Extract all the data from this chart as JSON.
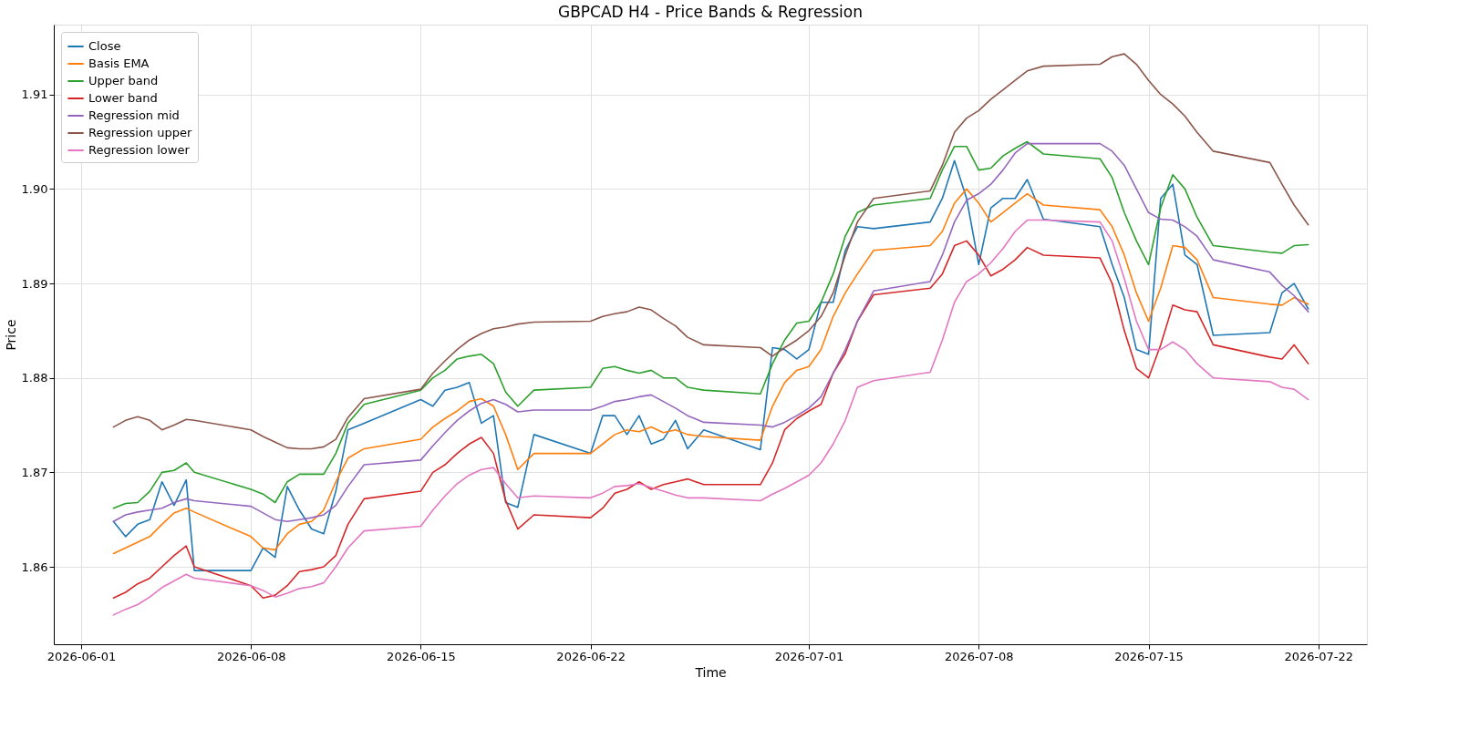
{
  "chart_data": {
    "type": "line",
    "title": "GBPCAD H4 - Price Bands & Regression",
    "xlabel": "Time",
    "ylabel": "Price",
    "x": [
      "2026-06-02T08:00",
      "2026-06-02T20:00",
      "2026-06-03T08:00",
      "2026-06-03T20:00",
      "2026-06-04T08:00",
      "2026-06-04T20:00",
      "2026-06-05T08:00",
      "2026-06-05T16:00",
      "2026-06-08T00:00",
      "2026-06-08T12:00",
      "2026-06-09T00:00",
      "2026-06-09T12:00",
      "2026-06-10T00:00",
      "2026-06-10T12:00",
      "2026-06-11T00:00",
      "2026-06-11T12:00",
      "2026-06-12T00:00",
      "2026-06-12T16:00",
      "2026-06-15T00:00",
      "2026-06-15T12:00",
      "2026-06-16T00:00",
      "2026-06-16T12:00",
      "2026-06-17T00:00",
      "2026-06-17T12:00",
      "2026-06-18T00:00",
      "2026-06-18T12:00",
      "2026-06-19T00:00",
      "2026-06-19T16:00",
      "2026-06-22T00:00",
      "2026-06-22T12:00",
      "2026-06-23T00:00",
      "2026-06-23T12:00",
      "2026-06-24T00:00",
      "2026-06-24T12:00",
      "2026-06-25T00:00",
      "2026-06-25T12:00",
      "2026-06-26T00:00",
      "2026-06-26T16:00",
      "2026-06-29T00:00",
      "2026-06-29T12:00",
      "2026-06-30T00:00",
      "2026-06-30T12:00",
      "2026-07-01T00:00",
      "2026-07-01T12:00",
      "2026-07-02T00:00",
      "2026-07-02T12:00",
      "2026-07-03T00:00",
      "2026-07-03T16:00",
      "2026-07-06T00:00",
      "2026-07-06T12:00",
      "2026-07-07T00:00",
      "2026-07-07T12:00",
      "2026-07-08T00:00",
      "2026-07-08T12:00",
      "2026-07-09T00:00",
      "2026-07-09T12:00",
      "2026-07-10T00:00",
      "2026-07-10T16:00",
      "2026-07-13T00:00",
      "2026-07-13T12:00",
      "2026-07-14T00:00",
      "2026-07-14T12:00",
      "2026-07-15T00:00",
      "2026-07-15T12:00",
      "2026-07-16T00:00",
      "2026-07-16T12:00",
      "2026-07-17T00:00",
      "2026-07-17T16:00",
      "2026-07-20T00:00",
      "2026-07-20T12:00",
      "2026-07-21T00:00",
      "2026-07-21T14:00"
    ],
    "series": [
      {
        "name": "Close",
        "color": "#1f77b4",
        "values": [
          1.8648,
          1.8632,
          1.8645,
          1.865,
          1.869,
          1.8665,
          1.8692,
          1.8596,
          1.8596,
          1.862,
          1.861,
          1.8685,
          1.866,
          1.864,
          1.8635,
          1.868,
          1.8745,
          1.8752,
          1.8777,
          1.877,
          1.8787,
          1.879,
          1.8795,
          1.8752,
          1.876,
          1.8668,
          1.8663,
          1.874,
          1.872,
          1.876,
          1.876,
          1.874,
          1.876,
          1.873,
          1.8735,
          1.8755,
          1.8725,
          1.8745,
          1.8724,
          1.8832,
          1.883,
          1.882,
          1.883,
          1.888,
          1.888,
          1.8935,
          1.896,
          1.8958,
          1.8965,
          1.899,
          1.903,
          1.899,
          1.892,
          1.898,
          1.899,
          1.899,
          1.901,
          1.8968,
          1.896,
          1.892,
          1.8885,
          1.883,
          1.8825,
          1.899,
          1.9005,
          1.893,
          1.892,
          1.8845,
          1.8848,
          1.889,
          1.89,
          1.8873
        ]
      },
      {
        "name": "Basis EMA",
        "color": "#ff7f0e",
        "values": [
          1.8614,
          1.862,
          1.8626,
          1.8632,
          1.8645,
          1.8657,
          1.8662,
          1.8658,
          1.8632,
          1.862,
          1.8618,
          1.8635,
          1.8645,
          1.8648,
          1.866,
          1.869,
          1.8715,
          1.8725,
          1.8735,
          1.8748,
          1.8757,
          1.8765,
          1.8775,
          1.8778,
          1.877,
          1.874,
          1.8703,
          1.872,
          1.872,
          1.873,
          1.874,
          1.8745,
          1.8743,
          1.8748,
          1.8742,
          1.8745,
          1.874,
          1.8738,
          1.8734,
          1.877,
          1.8795,
          1.8808,
          1.8812,
          1.883,
          1.8865,
          1.889,
          1.891,
          1.8935,
          1.894,
          1.8955,
          1.8985,
          1.9,
          1.8985,
          1.8965,
          1.8975,
          1.8985,
          1.8995,
          1.8983,
          1.8978,
          1.896,
          1.893,
          1.889,
          1.886,
          1.8895,
          1.894,
          1.8938,
          1.8925,
          1.8885,
          1.8878,
          1.8877,
          1.8885,
          1.8878
        ]
      },
      {
        "name": "Upper band",
        "color": "#2ca02c",
        "values": [
          1.8662,
          1.8667,
          1.8668,
          1.868,
          1.87,
          1.8702,
          1.871,
          1.87,
          1.8682,
          1.8677,
          1.8668,
          1.869,
          1.8698,
          1.8698,
          1.8698,
          1.872,
          1.8752,
          1.8772,
          1.8787,
          1.88,
          1.8808,
          1.882,
          1.8823,
          1.8825,
          1.8815,
          1.8785,
          1.877,
          1.8787,
          1.879,
          1.881,
          1.8812,
          1.8808,
          1.8805,
          1.8808,
          1.88,
          1.88,
          1.879,
          1.8787,
          1.8783,
          1.8815,
          1.884,
          1.8858,
          1.886,
          1.888,
          1.891,
          1.895,
          1.8975,
          1.8983,
          1.899,
          1.902,
          1.9045,
          1.9045,
          1.902,
          1.9022,
          1.9035,
          1.9043,
          1.905,
          1.9037,
          1.9032,
          1.9012,
          1.8975,
          1.8945,
          1.892,
          1.898,
          1.9015,
          1.9,
          1.897,
          1.894,
          1.8933,
          1.8932,
          1.894,
          1.8941
        ]
      },
      {
        "name": "Lower band",
        "color": "#d62728",
        "values": [
          1.8567,
          1.8573,
          1.8582,
          1.8588,
          1.86,
          1.8612,
          1.8622,
          1.86,
          1.858,
          1.8567,
          1.857,
          1.858,
          1.8595,
          1.8597,
          1.86,
          1.8612,
          1.8645,
          1.8672,
          1.868,
          1.87,
          1.8708,
          1.872,
          1.873,
          1.8737,
          1.872,
          1.867,
          1.864,
          1.8655,
          1.8652,
          1.8662,
          1.8678,
          1.8682,
          1.869,
          1.8682,
          1.8687,
          1.869,
          1.8693,
          1.8687,
          1.8687,
          1.871,
          1.8745,
          1.8757,
          1.8765,
          1.8772,
          1.8805,
          1.8826,
          1.886,
          1.8888,
          1.8895,
          1.891,
          1.894,
          1.8945,
          1.893,
          1.8908,
          1.8915,
          1.8925,
          1.8938,
          1.893,
          1.8927,
          1.89,
          1.885,
          1.881,
          1.88,
          1.8835,
          1.8877,
          1.8872,
          1.887,
          1.8835,
          1.8822,
          1.882,
          1.8835,
          1.8815
        ]
      },
      {
        "name": "Regression mid",
        "color": "#9467bd",
        "values": [
          1.8648,
          1.8655,
          1.8658,
          1.866,
          1.8662,
          1.8668,
          1.8672,
          1.867,
          1.8664,
          1.8657,
          1.865,
          1.8648,
          1.865,
          1.8652,
          1.8655,
          1.8665,
          1.8685,
          1.8708,
          1.8713,
          1.8728,
          1.8742,
          1.8755,
          1.8765,
          1.8773,
          1.8777,
          1.8772,
          1.8764,
          1.8766,
          1.8766,
          1.877,
          1.8775,
          1.8777,
          1.878,
          1.8782,
          1.8775,
          1.8768,
          1.876,
          1.8753,
          1.875,
          1.8748,
          1.8753,
          1.876,
          1.8768,
          1.878,
          1.8805,
          1.883,
          1.886,
          1.8892,
          1.8902,
          1.893,
          1.8965,
          1.8988,
          1.8995,
          1.9005,
          1.902,
          1.9038,
          1.9048,
          1.9048,
          1.9048,
          1.904,
          1.9025,
          1.9,
          1.8975,
          1.8968,
          1.8967,
          1.896,
          1.895,
          1.8925,
          1.8912,
          1.8898,
          1.8887,
          1.887
        ]
      },
      {
        "name": "Regression upper",
        "color": "#8c564b",
        "values": [
          1.8748,
          1.8755,
          1.8759,
          1.8755,
          1.8745,
          1.875,
          1.8756,
          1.8755,
          1.8745,
          1.8738,
          1.8732,
          1.8726,
          1.8725,
          1.8725,
          1.8727,
          1.8735,
          1.8758,
          1.8778,
          1.8788,
          1.8805,
          1.8818,
          1.883,
          1.884,
          1.8847,
          1.8852,
          1.8854,
          1.8857,
          1.8859,
          1.886,
          1.8865,
          1.8868,
          1.887,
          1.8875,
          1.8872,
          1.8863,
          1.8855,
          1.8843,
          1.8835,
          1.8832,
          1.8823,
          1.8832,
          1.884,
          1.885,
          1.8865,
          1.889,
          1.893,
          1.8965,
          1.899,
          1.8998,
          1.9025,
          1.906,
          1.9075,
          1.9083,
          1.9095,
          1.9105,
          1.9115,
          1.9125,
          1.913,
          1.9132,
          1.914,
          1.9143,
          1.9132,
          1.9115,
          1.91,
          1.909,
          1.9077,
          1.906,
          1.904,
          1.9028,
          1.9005,
          1.8983,
          1.8962
        ]
      },
      {
        "name": "Regression lower",
        "color": "#e377c2",
        "values": [
          1.8549,
          1.8555,
          1.856,
          1.8568,
          1.8578,
          1.8585,
          1.8592,
          1.8588,
          1.858,
          1.8575,
          1.8568,
          1.8572,
          1.8577,
          1.8579,
          1.8583,
          1.86,
          1.862,
          1.8638,
          1.8643,
          1.866,
          1.8675,
          1.8688,
          1.8697,
          1.8703,
          1.8705,
          1.8688,
          1.8673,
          1.8675,
          1.8673,
          1.8678,
          1.8685,
          1.8686,
          1.8688,
          1.8684,
          1.868,
          1.8676,
          1.8673,
          1.8673,
          1.867,
          1.8677,
          1.8683,
          1.869,
          1.8697,
          1.871,
          1.873,
          1.8755,
          1.879,
          1.8797,
          1.8806,
          1.884,
          1.888,
          1.8902,
          1.891,
          1.8922,
          1.8937,
          1.8955,
          1.8967,
          1.8967,
          1.8965,
          1.8945,
          1.8905,
          1.886,
          1.883,
          1.883,
          1.8838,
          1.883,
          1.8815,
          1.88,
          1.8796,
          1.879,
          1.8788,
          1.8777
        ]
      }
    ],
    "xlim": [
      "2026-05-30T21:00",
      "2026-07-24T00:00"
    ],
    "xticks": [
      "2026-06-01",
      "2026-06-08",
      "2026-06-15",
      "2026-06-22",
      "2026-07-01",
      "2026-07-08",
      "2026-07-15",
      "2026-07-22"
    ],
    "ylim": [
      1.8518,
      1.9174
    ],
    "yticks": [
      1.86,
      1.87,
      1.88,
      1.89,
      {
        "value": 1.9,
        "label": "1.90"
      },
      1.91
    ],
    "grid": true,
    "legend": "top left",
    "marker": "none",
    "line_style": "solid"
  }
}
